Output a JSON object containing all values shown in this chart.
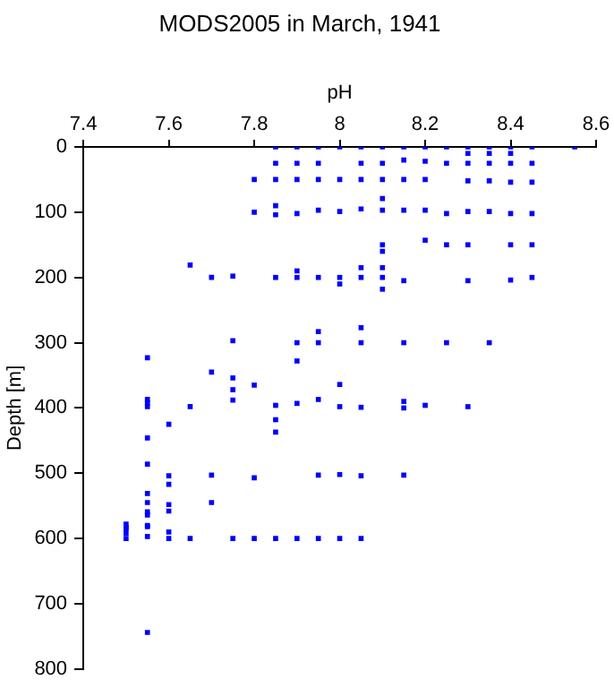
{
  "chart_data": {
    "type": "scatter",
    "title": "MODS2005 in March, 1941",
    "xlabel": "pH",
    "ylabel": "Depth [m]",
    "xlim": [
      7.4,
      8.6
    ],
    "xticks": [
      7.4,
      7.6,
      7.8,
      8,
      8.2,
      8.4,
      8.6
    ],
    "ylim": [
      800,
      0
    ],
    "yticks": [
      0,
      100,
      200,
      300,
      400,
      500,
      600,
      700,
      800
    ],
    "grid": false,
    "legend": false,
    "marker": "square",
    "series": [
      {
        "color": "#0000ff",
        "x": [
          7.85,
          7.9,
          7.95,
          8.0,
          8.05,
          8.1,
          8.15,
          8.2,
          8.25,
          8.3,
          8.35,
          8.4,
          8.45,
          8.55,
          8.3,
          8.35,
          8.4,
          7.85,
          7.9,
          7.95,
          8.05,
          8.1,
          8.15,
          8.2,
          8.25,
          8.3,
          8.35,
          8.4,
          8.45,
          7.8,
          7.85,
          7.9,
          7.95,
          8.0,
          8.05,
          8.1,
          8.15,
          8.2,
          8.3,
          8.35,
          8.4,
          8.45,
          8.1,
          7.8,
          7.85,
          7.9,
          7.95,
          8.0,
          8.05,
          8.1,
          8.15,
          8.2,
          8.25,
          8.3,
          8.35,
          8.4,
          8.45,
          7.85,
          8.2,
          8.25,
          8.3,
          8.4,
          8.45,
          8.1,
          8.1,
          7.65,
          7.7,
          7.75,
          7.85,
          7.9,
          7.95,
          8.0,
          8.05,
          8.1,
          8.15,
          8.3,
          8.4,
          8.45,
          7.9,
          8.05,
          8.1,
          8.0,
          8.1,
          7.75,
          7.55,
          8.05,
          8.05,
          7.95,
          7.95,
          7.9,
          7.9,
          8.15,
          8.25,
          8.35,
          7.7,
          7.75,
          7.75,
          7.75,
          7.8,
          7.85,
          7.85,
          7.85,
          7.9,
          7.95,
          8.0,
          8.0,
          8.05,
          8.15,
          8.15,
          8.2,
          8.3,
          7.55,
          7.55,
          7.55,
          7.55,
          7.55,
          7.55,
          7.55,
          7.55,
          7.55,
          7.65,
          7.6,
          7.6,
          7.7,
          7.8,
          7.95,
          8.0,
          8.05,
          8.15,
          7.6,
          7.6,
          7.6,
          7.7,
          7.5,
          7.5,
          7.5,
          7.5,
          7.5,
          7.55,
          7.55,
          7.55,
          7.55,
          7.6,
          7.6,
          7.65,
          7.75,
          7.8,
          7.85,
          7.9,
          7.95,
          8.0,
          8.05
        ],
        "values": [
          0,
          0,
          0,
          0,
          0,
          0,
          0,
          0,
          0,
          0,
          0,
          0,
          0,
          0,
          10,
          10,
          10,
          25,
          25,
          25,
          25,
          25,
          20,
          22,
          25,
          25,
          25,
          25,
          25,
          50,
          50,
          50,
          50,
          50,
          50,
          50,
          50,
          50,
          52,
          52,
          54,
          54,
          79,
          100,
          104,
          102,
          97,
          99,
          95,
          97,
          97,
          97,
          102,
          99,
          99,
          102,
          102,
          90,
          143,
          150,
          150,
          150,
          150,
          150,
          160,
          181,
          200,
          198,
          200,
          200,
          200,
          200,
          200,
          200,
          205,
          205,
          204,
          200,
          190,
          185,
          185,
          210,
          218,
          297,
          323,
          277,
          300,
          283,
          300,
          300,
          328,
          300,
          300,
          300,
          345,
          354,
          372,
          388,
          365,
          396,
          418,
          437,
          393,
          387,
          364,
          398,
          399,
          390,
          400,
          396,
          398,
          387,
          392,
          398,
          446,
          486,
          531,
          545,
          564,
          582,
          398,
          425,
          504,
          503,
          507,
          503,
          502,
          504,
          503,
          517,
          548,
          558,
          545,
          583,
          578,
          585,
          592,
          600,
          559,
          580,
          597,
          744,
          590,
          600,
          600,
          600,
          600,
          600,
          600,
          600,
          600,
          600
        ]
      }
    ]
  }
}
